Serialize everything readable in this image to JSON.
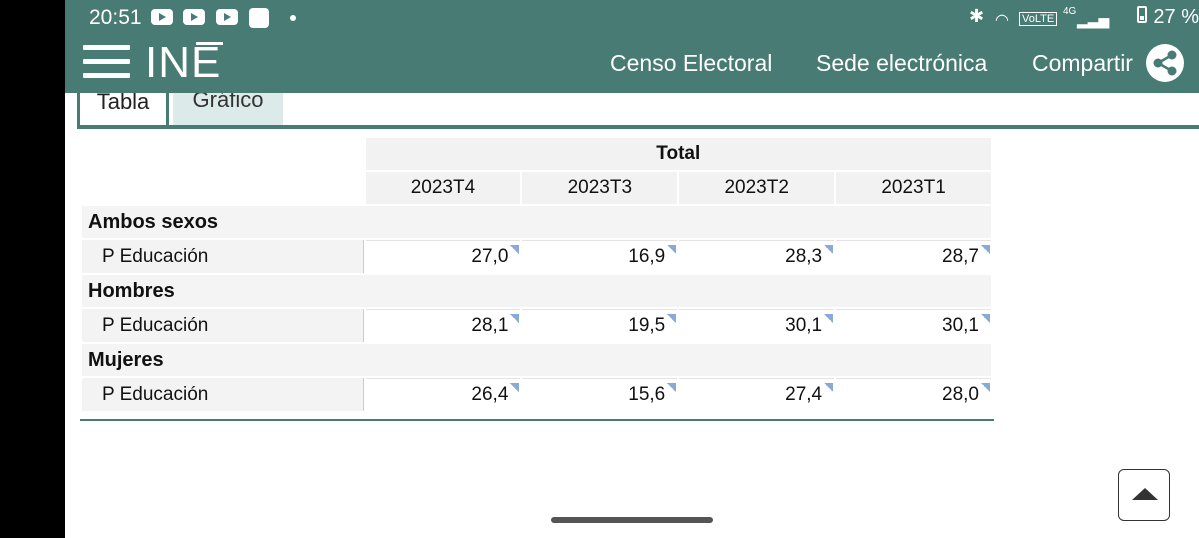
{
  "status_bar": {
    "time": "20:51",
    "network": "4G",
    "volte": "VoLTE",
    "battery": "27 %"
  },
  "header": {
    "logo": "INE",
    "nav": [
      "Censo Electoral",
      "Sede electrónica",
      "Compartir"
    ]
  },
  "tabs": [
    "Tabla",
    "Gráfico"
  ],
  "table": {
    "header_total": "Total",
    "periods": [
      "2023T4",
      "2023T3",
      "2023T2",
      "2023T1"
    ],
    "groups": [
      {
        "name": "Ambos sexos",
        "row_label": "P Educación",
        "values": [
          "27,0",
          "16,9",
          "28,3",
          "28,7"
        ]
      },
      {
        "name": "Hombres",
        "row_label": "P Educación",
        "values": [
          "28,1",
          "19,5",
          "30,1",
          "30,1"
        ]
      },
      {
        "name": "Mujeres",
        "row_label": "P Educación",
        "values": [
          "26,4",
          "15,6",
          "27,4",
          "28,0"
        ]
      }
    ]
  },
  "colors": {
    "brand": "#477b74",
    "tab_inactive": "#dcebe9"
  }
}
